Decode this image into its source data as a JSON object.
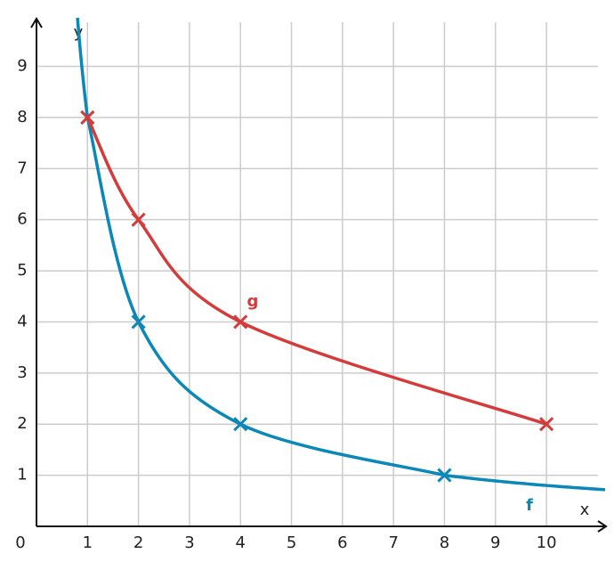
{
  "chart_data": {
    "type": "line",
    "x_label": "x",
    "y_label": "y",
    "xlim": [
      0,
      11.15
    ],
    "ylim": [
      0,
      9.95
    ],
    "xticks": [
      0,
      1,
      2,
      3,
      4,
      5,
      6,
      7,
      8,
      9,
      10
    ],
    "yticks": [
      1,
      2,
      3,
      4,
      5,
      6,
      7,
      8,
      9
    ],
    "grid": true,
    "marker": "x",
    "series": [
      {
        "name": "f",
        "color": "#0b87b8",
        "x": [
          1,
          2,
          4,
          8
        ],
        "values": [
          8,
          4,
          2,
          1
        ]
      },
      {
        "name": "g",
        "color": "#d43b3b",
        "x": [
          1,
          2,
          4,
          10
        ],
        "values": [
          8,
          6,
          4,
          2
        ]
      }
    ]
  }
}
